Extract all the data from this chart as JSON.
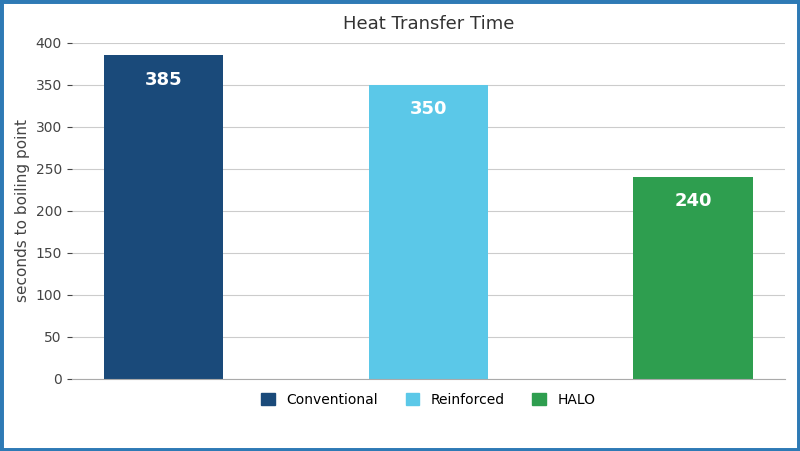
{
  "title": "Heat Transfer Time",
  "categories": [
    "Conventional",
    "Reinforced",
    "HALO"
  ],
  "values": [
    385,
    350,
    240
  ],
  "bar_colors": [
    "#1a4a7a",
    "#5bc8e8",
    "#2e9e4f"
  ],
  "label_color": "#ffffff",
  "ylabel": "seconds to boiling point",
  "ylim": [
    0,
    400
  ],
  "yticks": [
    0,
    50,
    100,
    150,
    200,
    250,
    300,
    350,
    400
  ],
  "grid_color": "#cccccc",
  "background_color": "#ffffff",
  "outer_border_color": "#2e7ab5",
  "bar_width": 0.45,
  "title_fontsize": 13,
  "ylabel_fontsize": 11,
  "tick_fontsize": 10,
  "legend_fontsize": 10,
  "value_label_fontsize": 13
}
